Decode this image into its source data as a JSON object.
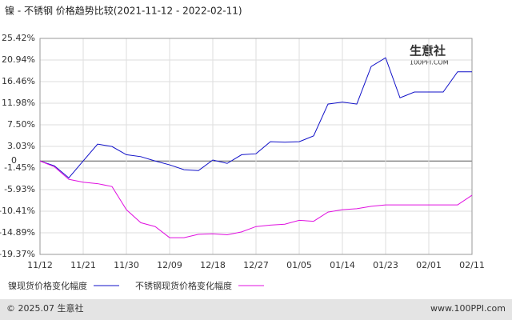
{
  "chart_data": {
    "type": "line",
    "title": "镍 - 不锈钢 价格趋势比较(2021-11-12 - 2022-02-11)",
    "categories": [
      "11/12",
      null,
      null,
      "11/21",
      null,
      null,
      "11/30",
      null,
      null,
      "12/09",
      null,
      null,
      "12/18",
      null,
      null,
      "12/27",
      null,
      null,
      "01/05",
      null,
      null,
      "01/14",
      null,
      null,
      "01/23",
      null,
      null,
      "02/01",
      null,
      null,
      "02/11"
    ],
    "series": [
      {
        "name": "镍现货价格变化幅度",
        "color": "#1010c8",
        "values": [
          0,
          -1,
          -3.5,
          0,
          3.5,
          3,
          1.3,
          0.9,
          0,
          -0.8,
          -1.8,
          -2,
          0.2,
          -0.5,
          1.3,
          1.5,
          4,
          3.9,
          4,
          5.2,
          11.8,
          12.2,
          11.8,
          19.6,
          21.4,
          13.1,
          14.3,
          14.3,
          14.3,
          18.5,
          18.5
        ]
      },
      {
        "name": "不锈钢现货价格变化幅度",
        "color": "#e010e0",
        "values": [
          0,
          -1.2,
          -3.8,
          -4.4,
          -4.7,
          -5.3,
          -10.1,
          -12.8,
          -13.6,
          -15.9,
          -15.9,
          -15.2,
          -15.1,
          -15.3,
          -14.7,
          -13.6,
          -13.3,
          -13.1,
          -12.3,
          -12.5,
          -10.6,
          -10.1,
          -9.9,
          -9.4,
          -9.1,
          -9.1,
          -9.1,
          -9.1,
          -9.1,
          -9.1,
          -7.1
        ]
      }
    ],
    "ylim": [
      -19.37,
      25.42
    ],
    "yticks": [
      {
        "value": 25.42,
        "label": "25.42%"
      },
      {
        "value": 20.94,
        "label": "20.94%"
      },
      {
        "value": 16.46,
        "label": "16.46%"
      },
      {
        "value": 11.98,
        "label": "11.98%"
      },
      {
        "value": 7.5,
        "label": "7.50%"
      },
      {
        "value": 3.03,
        "label": "3.03%"
      },
      0,
      {
        "value": -1.45,
        "label": "-1.45%"
      },
      {
        "value": -5.93,
        "label": "-5.93%"
      },
      {
        "value": -10.41,
        "label": "-10.41%"
      },
      {
        "value": -14.89,
        "label": "-14.89%"
      },
      {
        "value": -19.37,
        "label": "-19.37%"
      }
    ],
    "grid": true,
    "watermark": [
      "生意社",
      "100PPI.COM"
    ],
    "footer": {
      "left": "© 2025.07 生意社",
      "right": "www.100PPI.com"
    }
  }
}
